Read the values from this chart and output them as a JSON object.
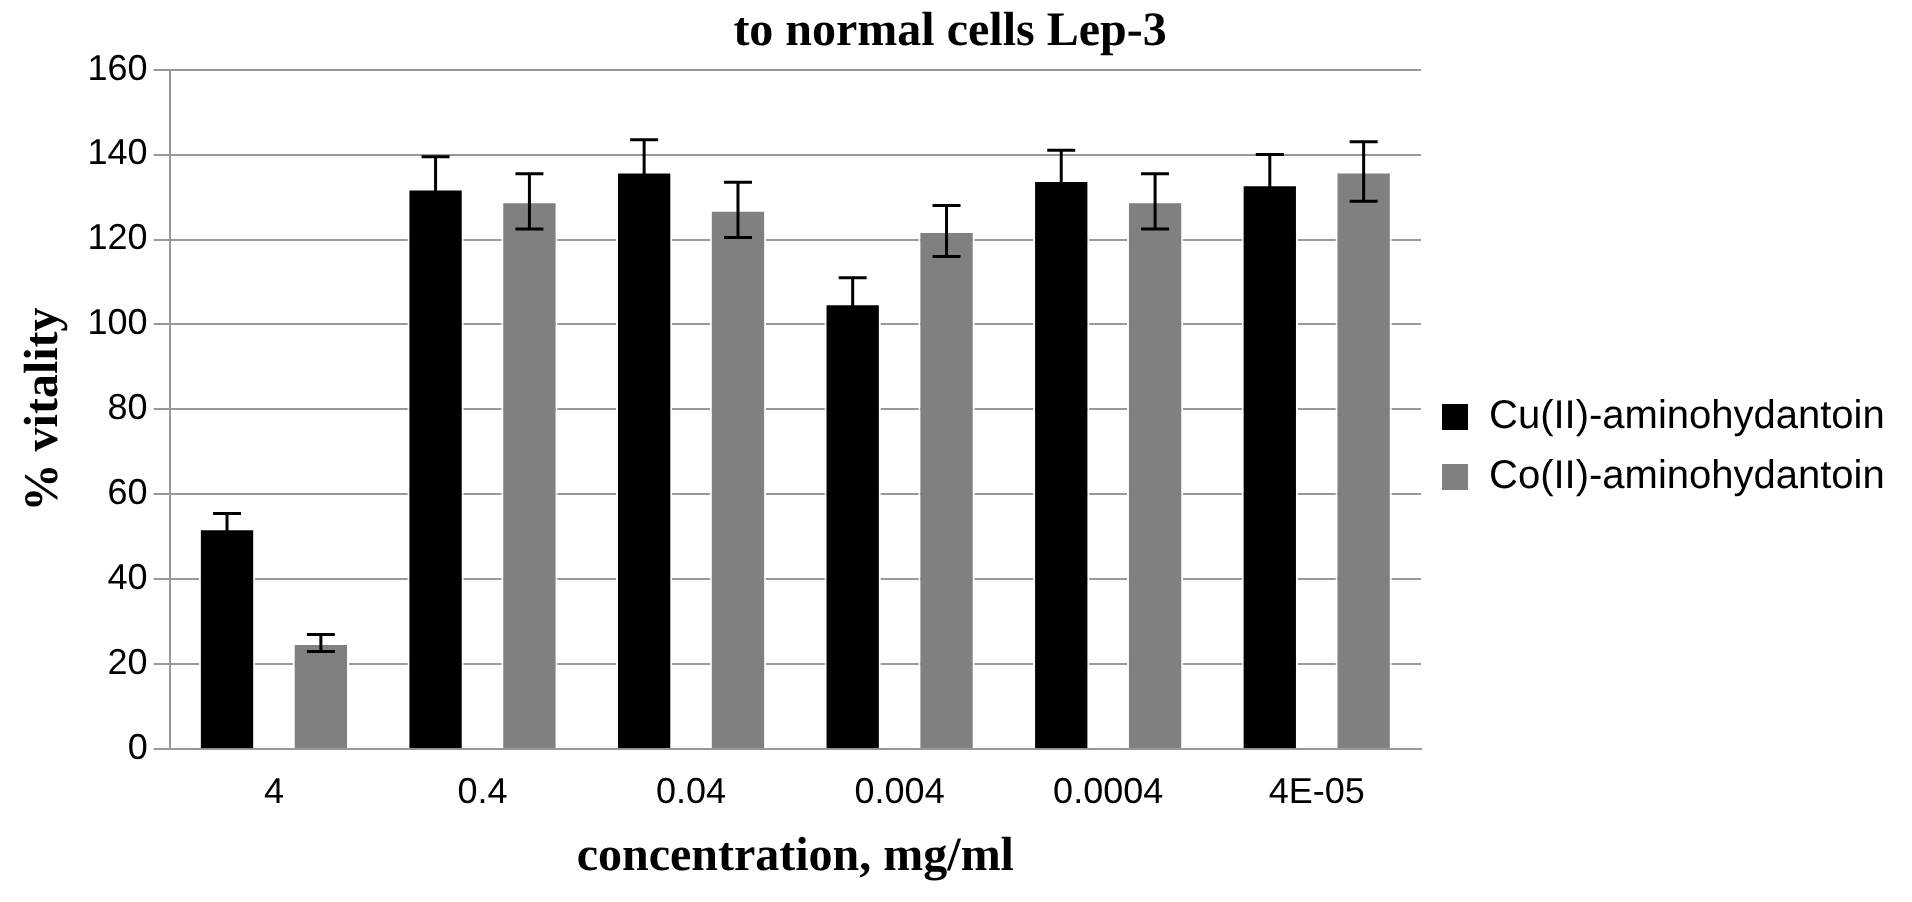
{
  "chart_data": {
    "type": "bar",
    "title": "to normal cells Lep-3",
    "xlabel": "concentration, mg/ml",
    "ylabel": "% vitality",
    "categories": [
      "4",
      "0.4",
      "0.04",
      "0.004",
      "0.0004",
      "4E-05"
    ],
    "series": [
      {
        "name": "Cu(II)-aminohydantoin",
        "color": "#000000",
        "values": [
          52,
          132,
          136,
          105,
          134,
          133
        ],
        "errors": [
          3.5,
          7.5,
          7.5,
          6,
          7,
          7
        ]
      },
      {
        "name": "Co(II)-aminohydantoin",
        "color": "#808080",
        "values": [
          25,
          129,
          127,
          122,
          129,
          136
        ],
        "errors": [
          2,
          6.5,
          6.5,
          6,
          6.5,
          7
        ]
      }
    ],
    "ylim": [
      0,
      160
    ],
    "yticks": [
      0,
      20,
      40,
      60,
      80,
      100,
      120,
      140,
      160
    ],
    "grid": "y",
    "legend": "right"
  }
}
